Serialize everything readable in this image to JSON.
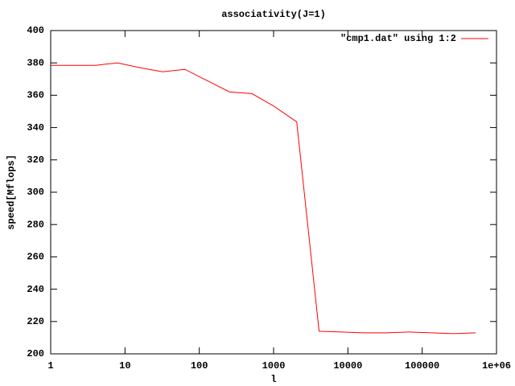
{
  "chart_data": {
    "type": "line",
    "title": "associativity(J=1)",
    "x_label": "l",
    "y_label": "speed[Mflops]",
    "x": [
      1,
      2,
      4,
      8,
      16,
      32,
      64,
      128,
      256,
      512,
      1024,
      2048,
      4096,
      8192,
      16384,
      32768,
      65536,
      131072,
      262144,
      524288
    ],
    "series": [
      {
        "name": "\"cmp1.dat\" using 1:2",
        "color": "#ff0000",
        "values": [
          378.5,
          378.5,
          378.5,
          380,
          377,
          374.5,
          376,
          369,
          362,
          361,
          353,
          343.5,
          214,
          213.5,
          213,
          213,
          213.5,
          213,
          212.5,
          213
        ]
      }
    ],
    "xlog": true,
    "xlim": [
      1,
      1000000
    ],
    "xticks": [
      1,
      10,
      100,
      1000,
      10000,
      100000,
      {
        "value": 1000000,
        "label": "1e+06"
      }
    ],
    "ylim": [
      200,
      400
    ],
    "yticks": [
      200,
      220,
      240,
      260,
      280,
      300,
      320,
      340,
      360,
      380,
      400
    ],
    "legend": "top-right"
  }
}
